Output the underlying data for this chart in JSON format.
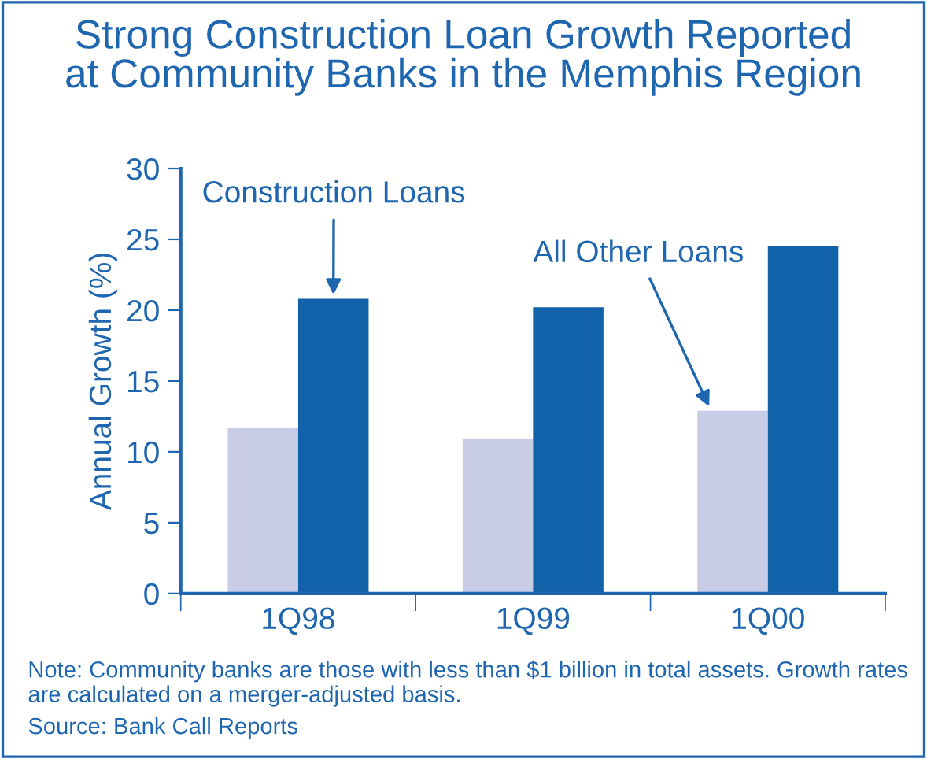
{
  "chart_data": {
    "type": "bar",
    "title": "Strong Construction Loan Growth Reported\nat Community Banks in the Memphis Region",
    "ylabel": "Annual Growth (%)",
    "categories": [
      "1Q98",
      "1Q99",
      "1Q00"
    ],
    "series": [
      {
        "name": "All Other Loans",
        "color": "#c8cce6",
        "values": [
          11.7,
          10.9,
          12.9
        ]
      },
      {
        "name": "Construction Loans",
        "color": "#1162a8",
        "values": [
          20.8,
          20.2,
          24.5
        ]
      }
    ],
    "ylim": [
      0,
      30
    ],
    "yticks": [
      0,
      5,
      10,
      15,
      20,
      25,
      30
    ],
    "grid": false,
    "legend": false,
    "annotations": [
      "Note: Community banks are those with less than $1 billion in total assets. Growth rates are calculated on a merger-adjusted basis.",
      "Source: Bank Call Reports"
    ]
  }
}
